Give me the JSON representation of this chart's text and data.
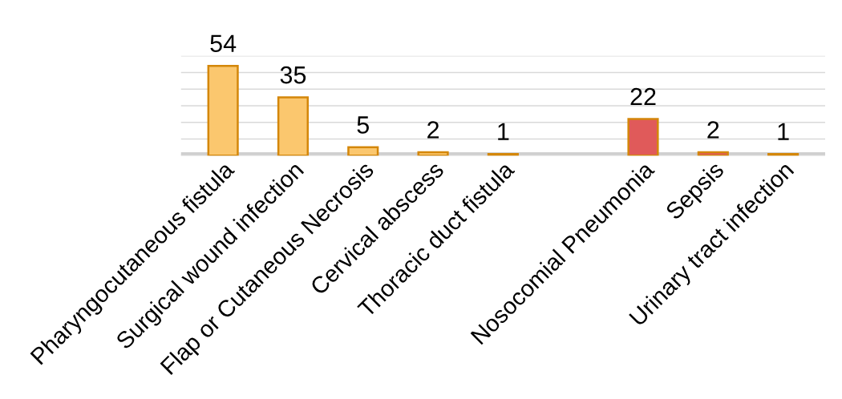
{
  "chart_data": {
    "type": "bar",
    "categories": [
      "Pharyngocutaneous fistula",
      "Surgical wound infection",
      "Flap or Cutaneous Necrosis",
      "Cervical abscess",
      "Thoracic duct fistula",
      null,
      "Nosocomial Pneumonia",
      "Sepsis",
      "Urinary tract infection"
    ],
    "values": [
      54,
      35,
      5,
      2,
      1,
      null,
      22,
      2,
      1
    ],
    "colors": [
      "#fbc76e",
      "#fbc76e",
      "#fbc76e",
      "#fbc76e",
      "#fbc76e",
      null,
      "#e05a5a",
      "#e05a5a",
      "#fbc76e"
    ],
    "ylim": [
      0,
      60
    ],
    "yticks": [
      {
        "value": 0,
        "label": null
      },
      {
        "value": 10,
        "label": null
      },
      {
        "value": 20,
        "label": null
      },
      {
        "value": 30,
        "label": null
      },
      {
        "value": 40,
        "label": null
      },
      {
        "value": 50,
        "label": null
      },
      {
        "value": 60,
        "label": null
      }
    ],
    "grid": "y",
    "tick_labels": "x",
    "data_labels": true
  }
}
